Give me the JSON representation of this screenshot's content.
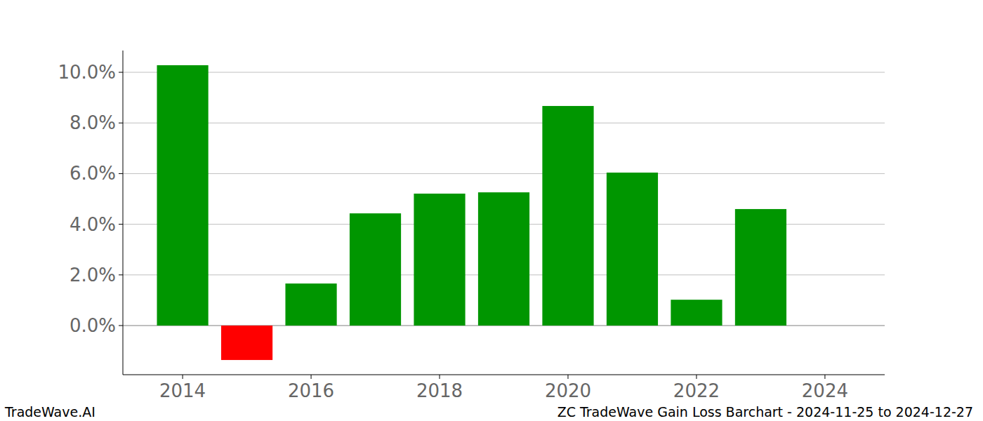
{
  "chart_data": {
    "type": "bar",
    "title": "ZC TradeWave Gain Loss Barchart - 2024-11-25 to 2024-12-27",
    "annotations": [
      "TradeWave.AI"
    ],
    "x": [
      2014,
      2015,
      2016,
      2017,
      2018,
      2019,
      2020,
      2021,
      2022,
      2023
    ],
    "values": [
      10.28,
      -1.36,
      1.66,
      4.43,
      5.21,
      5.26,
      8.67,
      6.04,
      1.02,
      4.6
    ],
    "colors": [
      "#009600",
      "#ff0000",
      "#009600",
      "#009600",
      "#009600",
      "#009600",
      "#009600",
      "#009600",
      "#009600",
      "#009600"
    ],
    "xlim": [
      2013.07,
      2024.93
    ],
    "xticks": [
      2014,
      2016,
      2018,
      2020,
      2022,
      2024
    ],
    "ylim": [
      -1.94,
      10.86
    ],
    "yticks": [
      {
        "value": 0,
        "label": "0.0%"
      },
      {
        "value": 2,
        "label": "2.0%"
      },
      {
        "value": 4,
        "label": "4.0%"
      },
      {
        "value": 6,
        "label": "6.0%"
      },
      {
        "value": 8,
        "label": "8.0%"
      },
      {
        "value": 10,
        "label": "10.0%"
      }
    ],
    "grid": true
  }
}
